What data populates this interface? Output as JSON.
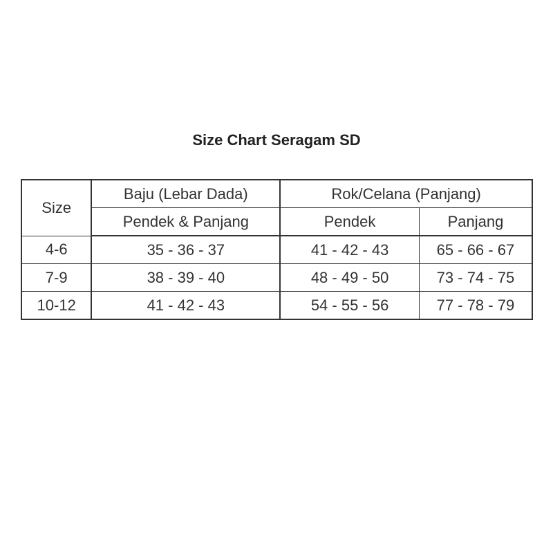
{
  "title": "Size Chart Seragam SD",
  "table": {
    "size_header": "Size",
    "baju_header": "Baju (Lebar Dada)",
    "baju_sub": "Pendek & Panjang",
    "rok_header": "Rok/Celana (Panjang)",
    "rok_sub": [
      "Pendek",
      "Panjang"
    ],
    "rows": [
      [
        "4-6",
        "35 - 36 - 37",
        "41 - 42 - 43",
        "65 - 66 - 67"
      ],
      [
        "7-9",
        "38 - 39 - 40",
        "48 - 49 - 50",
        "73 - 74 - 75"
      ],
      [
        "10-12",
        "41 - 42 - 43",
        "54 - 55 - 56",
        "77 - 78 - 79"
      ]
    ]
  }
}
